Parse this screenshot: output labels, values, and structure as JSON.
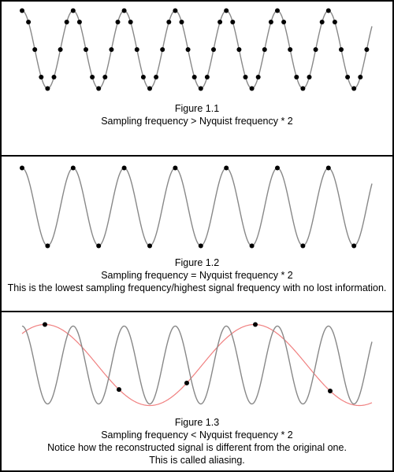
{
  "colors": {
    "signal": "#888888",
    "reconstructed": "#f08080",
    "sample": "#000000",
    "border": "#000000"
  },
  "panels": [
    {
      "figure": "Figure 1.1",
      "lines": [
        "Sampling frequency > Nyquist frequency * 2"
      ]
    },
    {
      "figure": "Figure 1.2",
      "lines": [
        "Sampling frequency = Nyquist frequency * 2",
        "This is the lowest sampling frequency/highest signal frequency with no lost information."
      ]
    },
    {
      "figure": "Figure 1.3",
      "lines": [
        "Sampling frequency < Nyquist frequency * 2",
        "Notice how the reconstructed signal is different from the original one.",
        "This is called aliasing."
      ]
    }
  ]
}
